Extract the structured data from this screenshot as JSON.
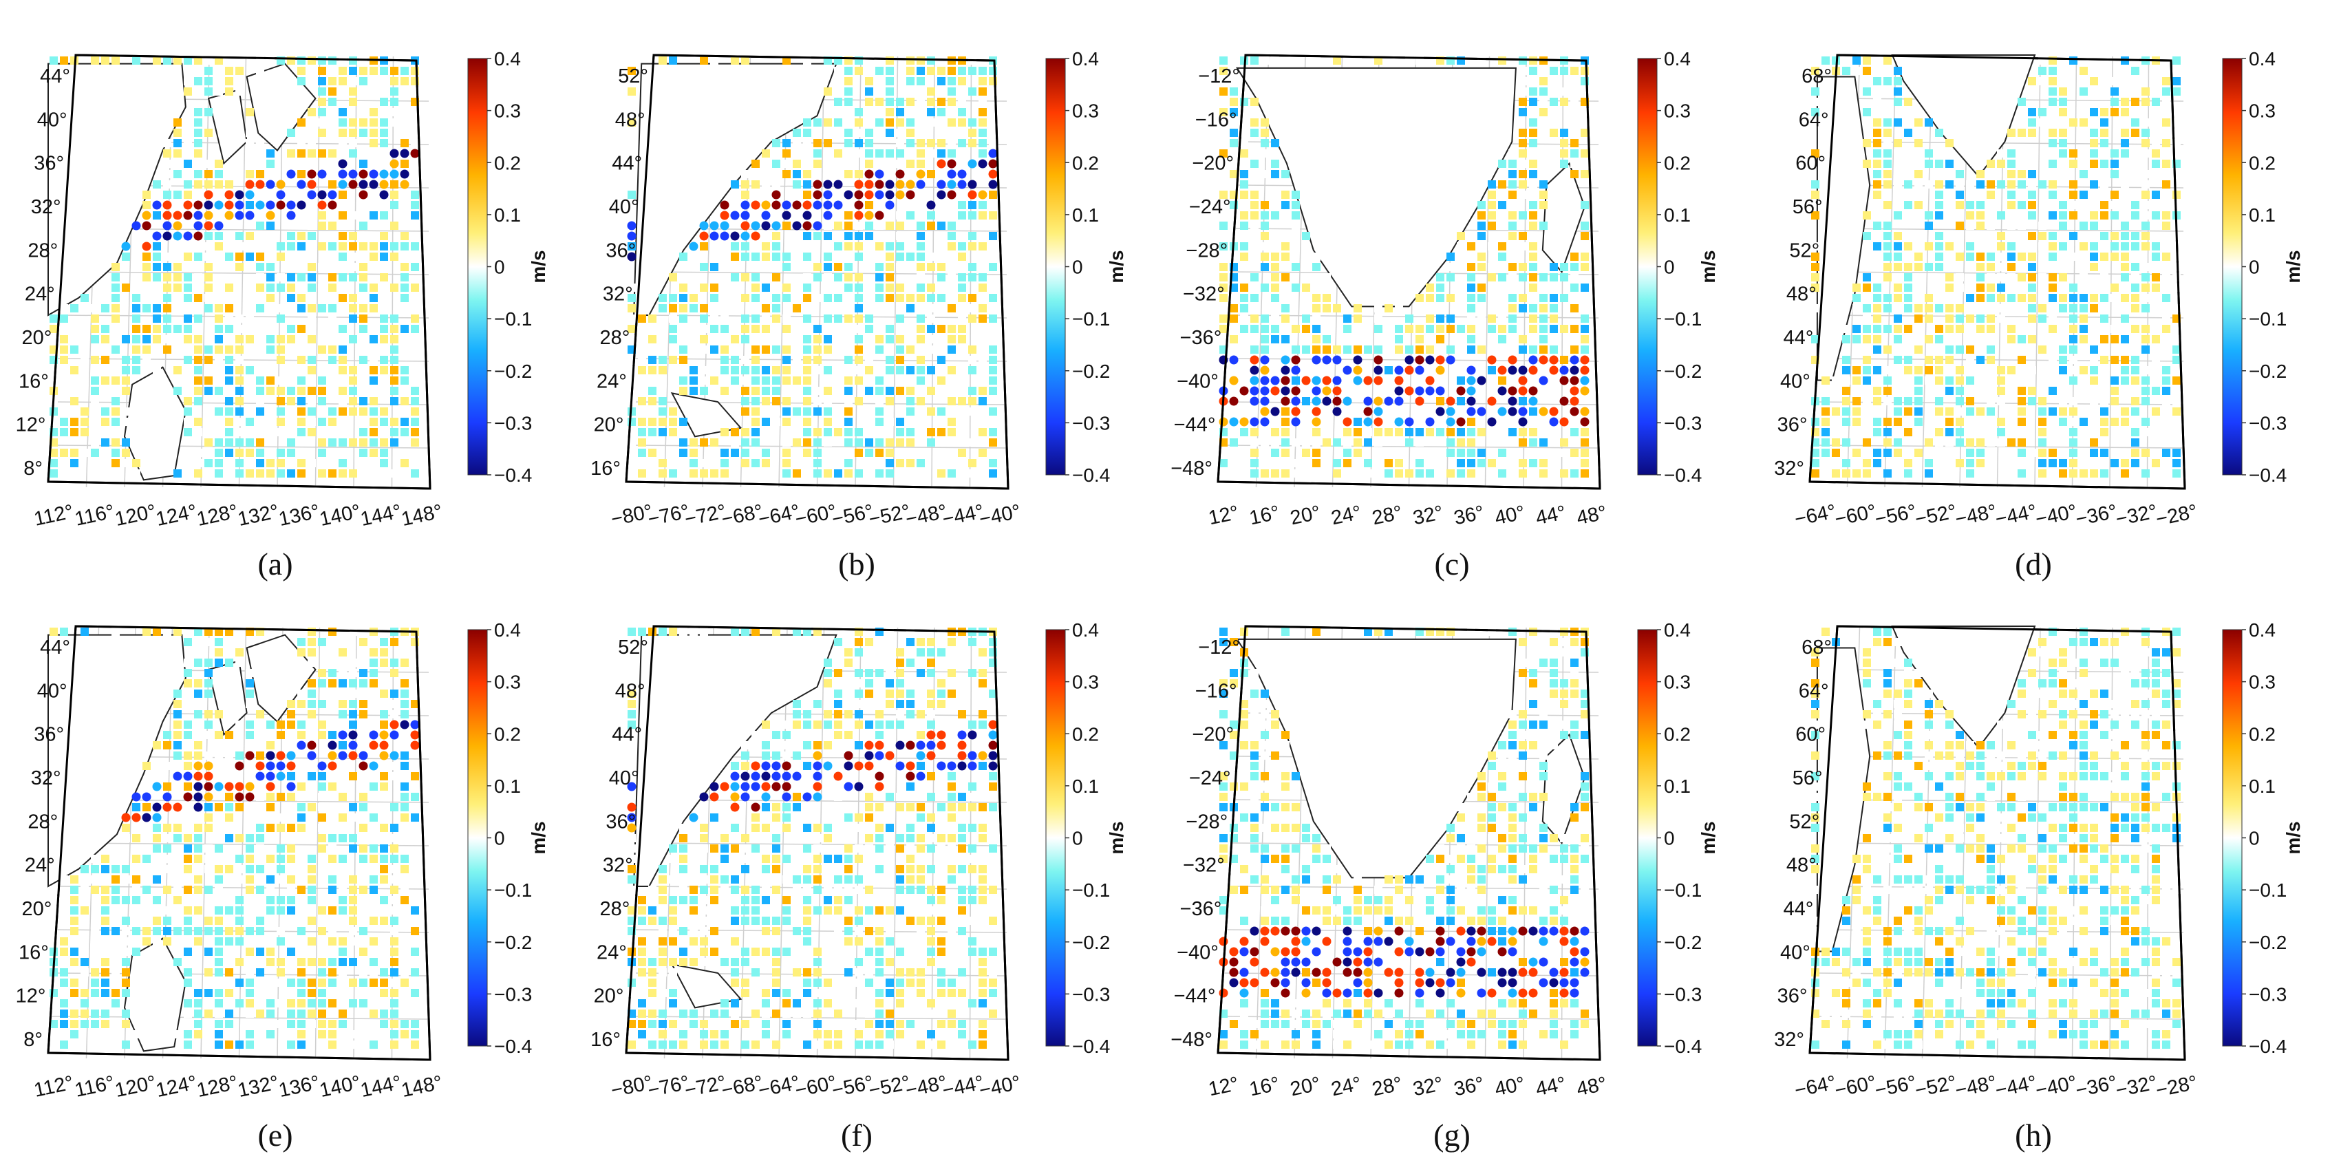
{
  "figure": {
    "colorbar": {
      "unit": "m/s",
      "ticks": [
        "0.4",
        "0.3",
        "0.2",
        "0.1",
        "0",
        "−0.1",
        "−0.2",
        "−0.3",
        "−0.4"
      ],
      "colors": [
        "#0a0a80",
        "#1a3cff",
        "#19b0ff",
        "#7ff5f0",
        "#ffffff",
        "#fff07a",
        "#ffb300",
        "#ff3b00",
        "#8b0000"
      ]
    },
    "panels": [
      {
        "label": "(a)",
        "region": "northwest-pacific",
        "lat_ticks": [
          "44°",
          "40°",
          "36°",
          "32°",
          "28°",
          "24°",
          "20°",
          "16°",
          "12°",
          "8°"
        ],
        "lon_ticks": [
          "112°",
          "116°",
          "120°",
          "124°",
          "128°",
          "132°",
          "136°",
          "140°",
          "144°",
          "148°"
        ]
      },
      {
        "label": "(b)",
        "region": "northwest-atlantic",
        "lat_ticks": [
          "52°",
          "48°",
          "44°",
          "40°",
          "36°",
          "32°",
          "28°",
          "24°",
          "20°",
          "16°"
        ],
        "lon_ticks": [
          "−80°",
          "−76°",
          "−72°",
          "−68°",
          "−64°",
          "−60°",
          "−56°",
          "−52°",
          "−48°",
          "−44°",
          "−40°"
        ]
      },
      {
        "label": "(c)",
        "region": "southern-africa",
        "lat_ticks": [
          "−12°",
          "−16°",
          "−20°",
          "−24°",
          "−28°",
          "−32°",
          "−36°",
          "−40°",
          "−44°",
          "−48°"
        ],
        "lon_ticks": [
          "12°",
          "16°",
          "20°",
          "24°",
          "28°",
          "32°",
          "36°",
          "40°",
          "44°",
          "48°"
        ]
      },
      {
        "label": "(d)",
        "region": "north-atlantic-greenland",
        "lat_ticks": [
          "68°",
          "64°",
          "60°",
          "56°",
          "52°",
          "48°",
          "44°",
          "40°",
          "36°",
          "32°"
        ],
        "lon_ticks": [
          "−64°",
          "−60°",
          "−56°",
          "−52°",
          "−48°",
          "−44°",
          "−40°",
          "−36°",
          "−32°",
          "−28°"
        ]
      },
      {
        "label": "(e)",
        "region": "northwest-pacific",
        "lat_ticks": [
          "44°",
          "40°",
          "36°",
          "32°",
          "28°",
          "24°",
          "20°",
          "16°",
          "12°",
          "8°"
        ],
        "lon_ticks": [
          "112°",
          "116°",
          "120°",
          "124°",
          "128°",
          "132°",
          "136°",
          "140°",
          "144°",
          "148°"
        ]
      },
      {
        "label": "(f)",
        "region": "northwest-atlantic",
        "lat_ticks": [
          "52°",
          "48°",
          "44°",
          "40°",
          "36°",
          "32°",
          "28°",
          "24°",
          "20°",
          "16°"
        ],
        "lon_ticks": [
          "−80°",
          "−76°",
          "−72°",
          "−68°",
          "−64°",
          "−60°",
          "−56°",
          "−52°",
          "−48°",
          "−44°",
          "−40°"
        ]
      },
      {
        "label": "(g)",
        "region": "southern-africa",
        "lat_ticks": [
          "−12°",
          "−16°",
          "−20°",
          "−24°",
          "−28°",
          "−32°",
          "−36°",
          "−40°",
          "−44°",
          "−48°"
        ],
        "lon_ticks": [
          "12°",
          "16°",
          "20°",
          "24°",
          "28°",
          "32°",
          "36°",
          "40°",
          "44°",
          "48°"
        ]
      },
      {
        "label": "(h)",
        "region": "north-atlantic-greenland",
        "lat_ticks": [
          "68°",
          "64°",
          "60°",
          "56°",
          "52°",
          "48°",
          "44°",
          "40°",
          "36°",
          "32°"
        ],
        "lon_ticks": [
          "−64°",
          "−60°",
          "−56°",
          "−52°",
          "−48°",
          "−44°",
          "−40°",
          "−36°",
          "−32°",
          "−28°"
        ]
      }
    ]
  }
}
